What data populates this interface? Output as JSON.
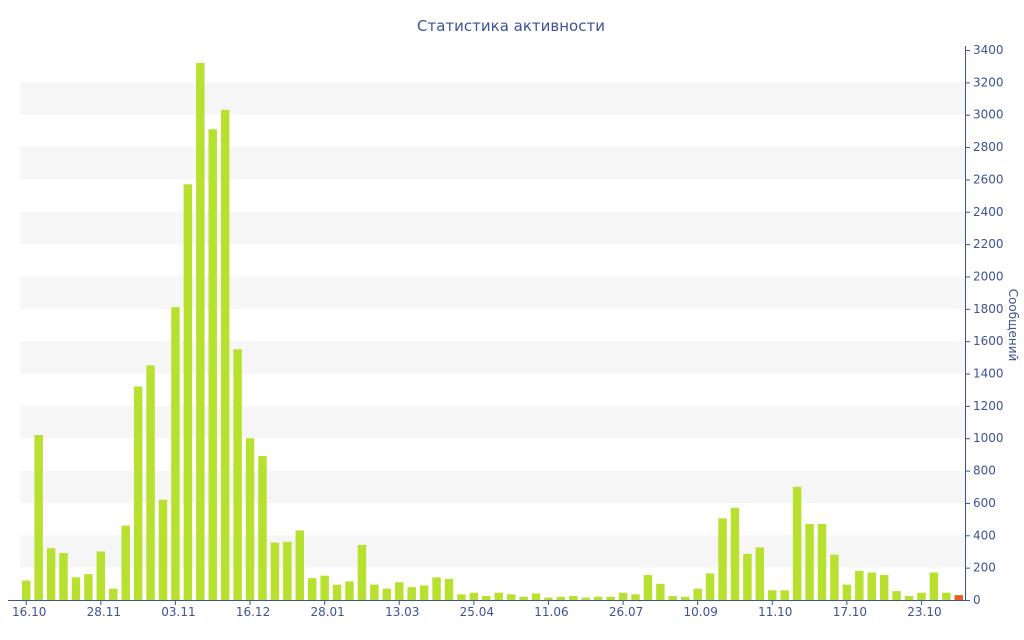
{
  "chart_data": {
    "type": "bar",
    "title": "Статистика активности",
    "ylabel": "Сообщений",
    "xlabel": "",
    "ylim": [
      0,
      3400
    ],
    "y_ticks": [
      0,
      200,
      400,
      600,
      800,
      1000,
      1200,
      1400,
      1600,
      1800,
      2000,
      2200,
      2400,
      2600,
      2800,
      3000,
      3200,
      3400
    ],
    "x_tick_labels": [
      {
        "index": 0,
        "label": "16.10"
      },
      {
        "index": 6,
        "label": "28.11"
      },
      {
        "index": 12,
        "label": "03.11"
      },
      {
        "index": 18,
        "label": "16.12"
      },
      {
        "index": 24,
        "label": "28.01"
      },
      {
        "index": 30,
        "label": "13.03"
      },
      {
        "index": 36,
        "label": "25.04"
      },
      {
        "index": 42,
        "label": "11.06"
      },
      {
        "index": 48,
        "label": "26.07"
      },
      {
        "index": 54,
        "label": "10.09"
      },
      {
        "index": 60,
        "label": "11.10"
      },
      {
        "index": 66,
        "label": "17.10"
      },
      {
        "index": 72,
        "label": "23.10"
      }
    ],
    "values": [
      120,
      1020,
      320,
      290,
      140,
      160,
      300,
      70,
      460,
      1320,
      1450,
      620,
      1810,
      2570,
      3320,
      2910,
      3030,
      1550,
      1000,
      890,
      355,
      360,
      430,
      135,
      150,
      95,
      115,
      340,
      95,
      70,
      110,
      80,
      90,
      140,
      130,
      35,
      45,
      25,
      45,
      35,
      20,
      40,
      15,
      20,
      25,
      15,
      20,
      20,
      45,
      35,
      155,
      100,
      25,
      20,
      70,
      165,
      505,
      570,
      285,
      325,
      60,
      60,
      700,
      470,
      470,
      280,
      95,
      180,
      170,
      155,
      55,
      25,
      45,
      170,
      45,
      30
    ],
    "bar_color": "#b8e02f",
    "highlight_color": "#f05a1f",
    "highlight_index": 75,
    "grid_band_color": "#f6f6f6",
    "axis_color": "#3d5396",
    "grid": true
  }
}
